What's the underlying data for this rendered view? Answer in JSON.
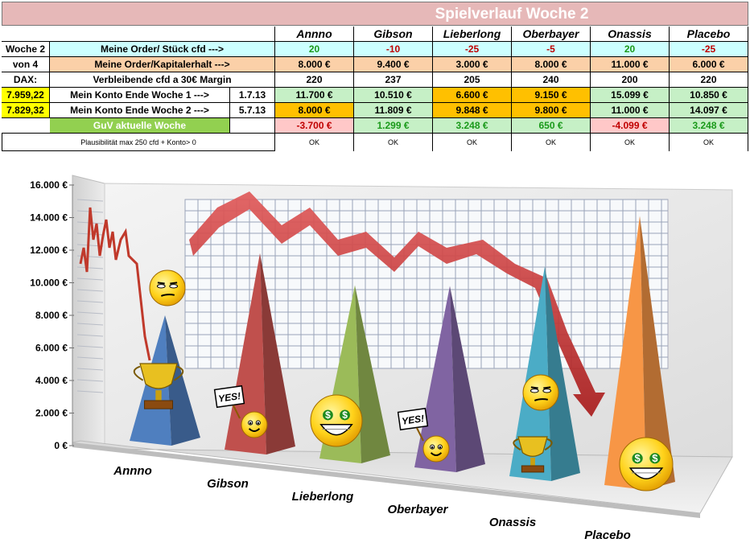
{
  "title": "Spielverlauf Woche 2",
  "players": [
    "Annno",
    "Gibson",
    "Lieberlong",
    "Oberbayer",
    "Onassis",
    "Placebo"
  ],
  "side": {
    "woche": "Woche 2",
    "von": "von 4",
    "dax_label": "DAX:",
    "dax1": "7.959,22",
    "dax2": "7.829,32"
  },
  "rows": {
    "order_label": "Meine Order/ Stück cfd  --->",
    "order": [
      "20",
      "-10",
      "-25",
      "-5",
      "20",
      "-25"
    ],
    "kapital_label": "Meine Order/Kapitalerhalt  --->",
    "kapital": [
      "8.000 €",
      "9.400 €",
      "3.000 €",
      "8.000 €",
      "11.000 €",
      "6.000 €"
    ],
    "cfd_label": "Verbleibende cfd a 30€ Margin",
    "cfd": [
      "220",
      "237",
      "205",
      "240",
      "200",
      "220"
    ],
    "konto1_label": "Mein Konto Ende Woche 1 --->",
    "konto1_date": "1.7.13",
    "konto1": [
      "11.700 €",
      "10.510 €",
      "6.600 €",
      "9.150 €",
      "15.099 €",
      "10.850 €"
    ],
    "konto2_label": "Mein Konto Ende Woche 2 --->",
    "konto2_date": "5.7.13",
    "konto2": [
      "8.000 €",
      "11.809 €",
      "9.848 €",
      "9.800 €",
      "11.000 €",
      "14.097 €"
    ],
    "guv_label": "GuV aktuelle Woche",
    "guv": [
      "-3.700 €",
      "1.299 €",
      "3.248 €",
      "650 €",
      "-4.099 €",
      "3.248 €"
    ],
    "plaus_label": "Plausibilität max 250 cfd + Konto> 0",
    "plaus": [
      "OK",
      "OK",
      "OK",
      "OK",
      "OK",
      "OK"
    ]
  },
  "chart_data": {
    "type": "bar",
    "categories": [
      "Annno",
      "Gibson",
      "Lieberlong",
      "Oberbayer",
      "Onassis",
      "Placebo"
    ],
    "values": [
      8000,
      11809,
      9848,
      9800,
      11000,
      14097
    ],
    "ylim": [
      0,
      16000
    ],
    "yticks": [
      "0 €",
      "2.000 €",
      "4.000 €",
      "6.000 €",
      "8.000 €",
      "10.000 €",
      "12.000 €",
      "14.000 €",
      "16.000 €"
    ],
    "colors": [
      "#4f7fbf",
      "#c0504d",
      "#9bbb59",
      "#8064a2",
      "#4bacc6",
      "#f79646"
    ],
    "decorations": [
      "neutral-smiley",
      "yes-sign-smiley",
      "money-smiley",
      "yes-sign-smiley",
      "neutral-smiley",
      "money-smiley",
      "trophy-icon"
    ]
  }
}
